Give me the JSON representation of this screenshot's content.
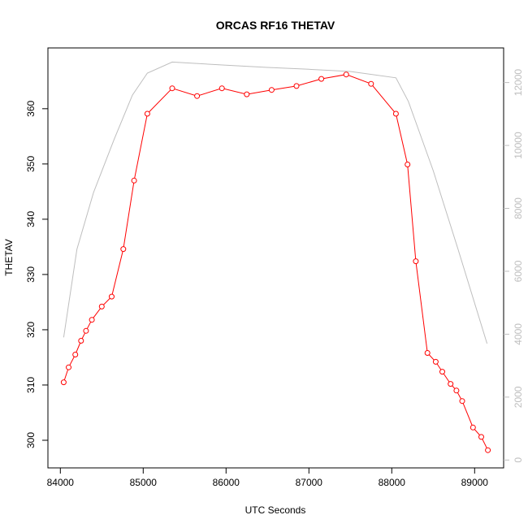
{
  "chart_data": {
    "type": "line",
    "title": "ORCAS RF16 THETAV",
    "xlabel": "UTC Seconds",
    "ylabel": "THETAV",
    "xlim": [
      83850,
      89350
    ],
    "ylim": [
      295,
      371
    ],
    "y2lim": [
      -250,
      13100
    ],
    "x_ticks": [
      84000,
      85000,
      86000,
      87000,
      88000,
      89000
    ],
    "y_ticks": [
      300,
      310,
      320,
      330,
      340,
      350,
      360
    ],
    "y2_ticks": [
      0,
      2000,
      4000,
      6000,
      8000,
      10000,
      12000
    ],
    "grid": false,
    "colors": {
      "primary": "#ff0000",
      "secondary": "#bebebe"
    },
    "series": [
      {
        "axis": "left",
        "style": "line+markers",
        "color": "#ff0000",
        "x": [
          84040,
          84100,
          84180,
          84250,
          84310,
          84380,
          84500,
          84620,
          84760,
          84890,
          85050,
          85350,
          85650,
          85950,
          86250,
          86550,
          86850,
          87150,
          87450,
          87750,
          88050,
          88190,
          88290,
          88430,
          88530,
          88610,
          88710,
          88780,
          88850,
          88980,
          89080,
          89160
        ],
        "values": [
          310.5,
          313.2,
          315.5,
          318.0,
          319.8,
          321.8,
          324.2,
          326.0,
          334.6,
          347.0,
          359.1,
          363.7,
          362.3,
          363.7,
          362.6,
          363.4,
          364.1,
          365.4,
          366.2,
          364.5,
          359.1,
          349.9,
          332.4,
          315.8,
          314.2,
          312.4,
          310.2,
          309.0,
          307.1,
          302.3,
          300.6,
          298.2
        ]
      },
      {
        "axis": "right",
        "style": "line",
        "color": "#bebebe",
        "x": [
          84040,
          84200,
          84400,
          84650,
          84870,
          85050,
          85350,
          86000,
          86500,
          87000,
          87500,
          88050,
          88200,
          88500,
          88800,
          89150
        ],
        "values": [
          3900,
          6700,
          8500,
          10200,
          11600,
          12300,
          12650,
          12550,
          12480,
          12420,
          12350,
          12150,
          11400,
          9200,
          6700,
          3700
        ]
      }
    ]
  }
}
